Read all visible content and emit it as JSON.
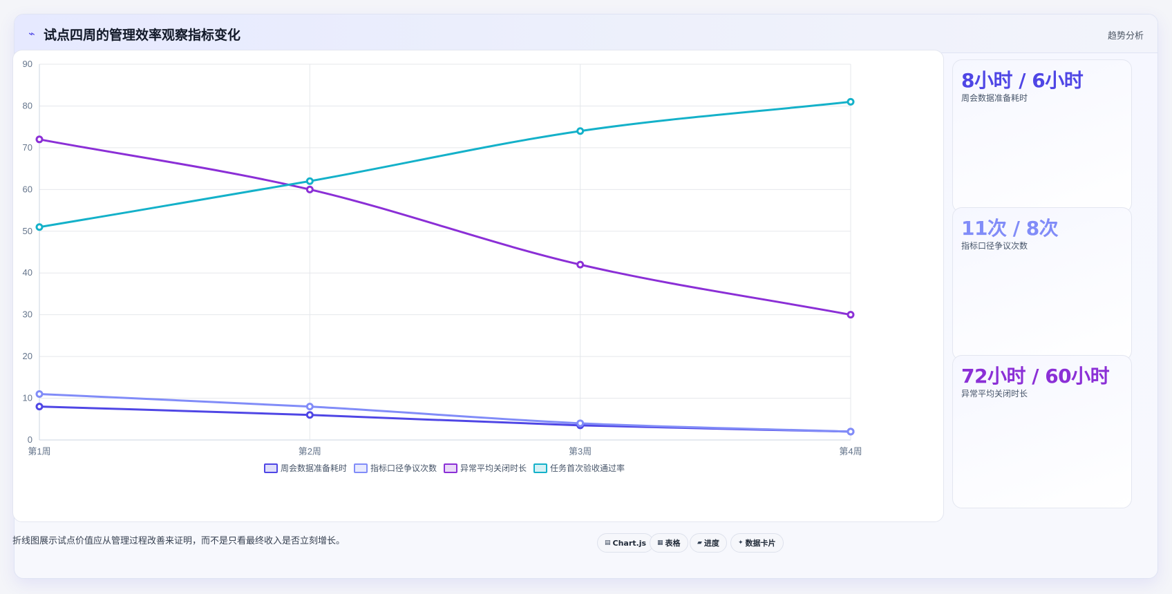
{
  "header": {
    "icon": "trend-line-icon",
    "title": "试点四周的管理效率观察指标变化",
    "badge": "趋势分析"
  },
  "stats": [
    {
      "value": "8小时 / 6小时",
      "label": "周会数据准备耗时",
      "color": "#4f46e5"
    },
    {
      "value": "11次 / 8次",
      "label": "指标口径争议次数",
      "color": "#818cf8"
    },
    {
      "value": "72小时 / 60小时",
      "label": "异常平均关闭时长",
      "color": "#8b2fd6"
    }
  ],
  "footer": {
    "note": "折线图展示试点价值应从管理过程改善来证明，而不是只看最终收入是否立刻增长。",
    "buttons": [
      {
        "icon": "chart-icon",
        "label": "Chart.js"
      },
      {
        "icon": "table-icon",
        "label": "表格"
      },
      {
        "icon": "progress-icon",
        "label": "进度"
      },
      {
        "icon": "card-icon",
        "label": "数据卡片"
      }
    ]
  },
  "chart_data": {
    "type": "line",
    "categories": [
      "第1周",
      "第2周",
      "第3周",
      "第4周"
    ],
    "ylim": [
      0,
      90
    ],
    "yticks": [
      0,
      10,
      20,
      30,
      40,
      50,
      60,
      70,
      80,
      90
    ],
    "grid": true,
    "legend_position": "bottom",
    "series": [
      {
        "name": "周会数据准备耗时",
        "values": [
          8,
          6,
          3.5,
          2
        ],
        "color": "#4f46e5"
      },
      {
        "name": "指标口径争议次数",
        "values": [
          11,
          8,
          4,
          2
        ],
        "color": "#818cf8"
      },
      {
        "name": "异常平均关闭时长",
        "values": [
          72,
          60,
          42,
          30
        ],
        "color": "#8b2fd6"
      },
      {
        "name": "任务首次验收通过率",
        "values": [
          51,
          62,
          74,
          81
        ],
        "color": "#14b1c9"
      }
    ]
  }
}
